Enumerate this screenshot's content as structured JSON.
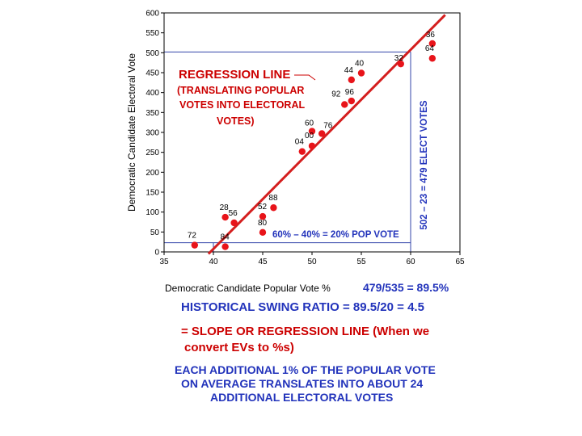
{
  "chart_data": {
    "type": "scatter",
    "title": "",
    "xlabel": "Democratic Candidate Popular Vote %",
    "ylabel": "Democratic Candidate Electoral Vote",
    "xlim": [
      35,
      65
    ],
    "ylim": [
      0,
      600
    ],
    "x_ticks": [
      35,
      40,
      45,
      50,
      55,
      60,
      65
    ],
    "y_ticks": [
      0,
      50,
      100,
      150,
      200,
      250,
      300,
      350,
      400,
      450,
      500,
      550,
      600
    ],
    "grid": false,
    "points": [
      {
        "label": "36",
        "x": 62.2,
        "y": 523
      },
      {
        "label": "64",
        "x": 62.2,
        "y": 486
      },
      {
        "label": "32",
        "x": 59.0,
        "y": 472
      },
      {
        "label": "40",
        "x": 55.0,
        "y": 449
      },
      {
        "label": "44",
        "x": 54.0,
        "y": 432
      },
      {
        "label": "96",
        "x": 54.0,
        "y": 379
      },
      {
        "label": "92",
        "x": 53.3,
        "y": 370
      },
      {
        "label": "60",
        "x": 50.0,
        "y": 303
      },
      {
        "label": "76",
        "x": 51.0,
        "y": 297
      },
      {
        "label": "00",
        "x": 50.0,
        "y": 266
      },
      {
        "label": "04",
        "x": 49.0,
        "y": 252
      },
      {
        "label": "88",
        "x": 46.1,
        "y": 111
      },
      {
        "label": "52",
        "x": 45.0,
        "y": 89
      },
      {
        "label": "28",
        "x": 41.2,
        "y": 87
      },
      {
        "label": "56",
        "x": 42.1,
        "y": 73
      },
      {
        "label": "80",
        "x": 45.0,
        "y": 49
      },
      {
        "label": "72",
        "x": 38.1,
        "y": 17
      },
      {
        "label": "84",
        "x": 41.2,
        "y": 13
      }
    ],
    "regression_line": {
      "x1": 39.5,
      "y1": -5,
      "x2": 63.5,
      "y2": 595
    },
    "reference_lines": {
      "x_low": 40,
      "x_high": 60,
      "y_low": 23,
      "y_high": 502
    }
  },
  "annotations": {
    "regression_title": "REGRESSION LINE",
    "regression_sub": [
      "(TRANSLATING POPULAR",
      "VOTES INTO ELECTORAL",
      "VOTES)"
    ],
    "pop_range": "60% – 40% = 20% POP VOTE",
    "ev_range": "502 – 23 = 479 ELECT VOTES",
    "ratio": "479/535 = 89.5%"
  },
  "text": {
    "swing_ratio": "HISTORICAL SWING RATIO =  89.5/20 = 4.5",
    "slope_line1": "= SLOPE OR REGRESSION LINE (When we",
    "slope_line2": "convert EVs to %s)",
    "each_line1": "EACH ADDITIONAL 1% OF THE POPULAR VOTE",
    "each_line2": "ON AVERAGE TRANSLATES INTO ABOUT 24",
    "each_line3": "ADDITIONAL ELECTORAL VOTES"
  },
  "colors": {
    "points": "#e8141a",
    "regression": "#d41e1e",
    "red_text": "#cc0000",
    "blue_text": "#2233bb",
    "ref_lines": "#3344aa"
  }
}
